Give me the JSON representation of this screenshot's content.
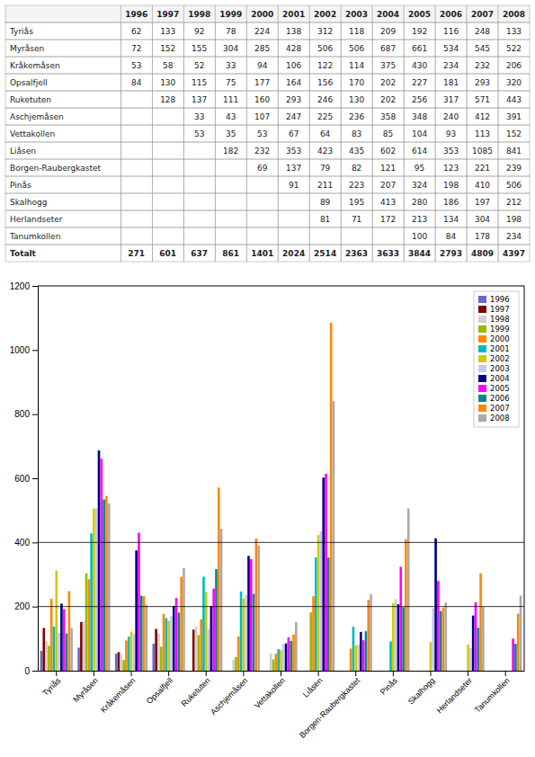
{
  "chart_data": [
    {
      "type": "table",
      "columns": [
        1996,
        1997,
        1998,
        1999,
        2000,
        2001,
        2002,
        2003,
        2004,
        2005,
        2006,
        2007,
        2008
      ],
      "rows": [
        "Tyriås",
        "Myråsen",
        "Kråkemåsen",
        "Opsalfjell",
        "Ruketuten",
        "Aschjemåsen",
        "Vettakollen",
        "Liåsen",
        "Borgen-Raubergkastet",
        "Pinås",
        "Skalhogg",
        "Herlandseter",
        "Tanumkollen"
      ],
      "cells": [
        [
          62,
          133,
          92,
          78,
          224,
          138,
          312,
          118,
          209,
          192,
          116,
          248,
          133
        ],
        [
          72,
          152,
          155,
          304,
          285,
          428,
          506,
          506,
          687,
          661,
          534,
          545,
          522
        ],
        [
          53,
          58,
          52,
          33,
          94,
          106,
          122,
          114,
          375,
          430,
          234,
          232,
          206
        ],
        [
          84,
          130,
          115,
          75,
          177,
          164,
          156,
          170,
          202,
          227,
          181,
          293,
          320
        ],
        [
          null,
          128,
          137,
          111,
          160,
          293,
          246,
          130,
          202,
          256,
          317,
          571,
          443
        ],
        [
          null,
          null,
          33,
          43,
          107,
          247,
          225,
          236,
          358,
          348,
          240,
          412,
          391
        ],
        [
          null,
          null,
          53,
          35,
          53,
          67,
          64,
          83,
          85,
          104,
          93,
          113,
          152
        ],
        [
          null,
          null,
          null,
          182,
          232,
          353,
          423,
          435,
          602,
          614,
          353,
          1085,
          841
        ],
        [
          null,
          null,
          null,
          null,
          69,
          137,
          79,
          82,
          121,
          95,
          123,
          221,
          239
        ],
        [
          null,
          null,
          null,
          null,
          null,
          91,
          211,
          223,
          207,
          324,
          198,
          410,
          506
        ],
        [
          null,
          null,
          null,
          null,
          null,
          null,
          89,
          195,
          413,
          280,
          186,
          197,
          212
        ],
        [
          null,
          null,
          null,
          null,
          null,
          null,
          81,
          71,
          172,
          213,
          134,
          304,
          198
        ],
        [
          null,
          null,
          null,
          null,
          null,
          null,
          null,
          null,
          null,
          100,
          84,
          178,
          234
        ]
      ],
      "total_label": "Totalt",
      "totals": [
        271,
        601,
        637,
        861,
        1401,
        2024,
        2514,
        2363,
        3633,
        3844,
        2793,
        4809,
        4397
      ]
    },
    {
      "type": "bar",
      "categories": [
        "Tyriås",
        "Myråsen",
        "Kråkemåsen",
        "Opsalfjell",
        "Ruketuten",
        "Aschjemåsen",
        "Vettakollen",
        "Liåsen",
        "Borgen-Raubergkastet",
        "Pinås",
        "Skalhogg",
        "Herlandseter",
        "Tanumkollen"
      ],
      "series": [
        {
          "name": "1996",
          "color": "#6666cc",
          "values": [
            62,
            72,
            53,
            84,
            0,
            0,
            0,
            0,
            0,
            0,
            0,
            0,
            0
          ]
        },
        {
          "name": "1997",
          "color": "#800000",
          "values": [
            133,
            152,
            58,
            130,
            128,
            0,
            0,
            0,
            0,
            0,
            0,
            0,
            0
          ]
        },
        {
          "name": "1998",
          "color": "#d0d0d0",
          "values": [
            92,
            155,
            52,
            115,
            137,
            33,
            53,
            0,
            0,
            0,
            0,
            0,
            0
          ]
        },
        {
          "name": "1999",
          "color": "#99bb00",
          "values": [
            78,
            304,
            33,
            75,
            111,
            43,
            35,
            182,
            0,
            0,
            0,
            0,
            0
          ]
        },
        {
          "name": "2000",
          "color": "#ff8800",
          "values": [
            224,
            285,
            94,
            177,
            160,
            107,
            53,
            232,
            69,
            0,
            0,
            0,
            0
          ]
        },
        {
          "name": "2001",
          "color": "#00bbbb",
          "values": [
            138,
            428,
            106,
            164,
            293,
            247,
            67,
            353,
            137,
            91,
            0,
            0,
            0
          ]
        },
        {
          "name": "2002",
          "color": "#cccc00",
          "values": [
            312,
            506,
            122,
            156,
            246,
            225,
            64,
            423,
            79,
            211,
            89,
            81,
            0
          ]
        },
        {
          "name": "2003",
          "color": "#c8c8e8",
          "values": [
            118,
            506,
            114,
            170,
            130,
            236,
            83,
            435,
            82,
            223,
            195,
            71,
            0
          ]
        },
        {
          "name": "2004",
          "color": "#000088",
          "values": [
            209,
            687,
            375,
            202,
            202,
            358,
            85,
            602,
            121,
            207,
            413,
            172,
            0
          ]
        },
        {
          "name": "2005",
          "color": "#ff00ff",
          "values": [
            192,
            661,
            430,
            227,
            256,
            348,
            104,
            614,
            95,
            324,
            280,
            213,
            100
          ]
        },
        {
          "name": "2006",
          "color": "#008888",
          "values": [
            116,
            534,
            234,
            181,
            317,
            240,
            93,
            353,
            123,
            198,
            186,
            134,
            84
          ]
        },
        {
          "name": "2007",
          "color": "#ff8800",
          "values": [
            248,
            545,
            232,
            293,
            571,
            412,
            113,
            1085,
            221,
            410,
            197,
            304,
            178
          ]
        },
        {
          "name": "2008",
          "color": "#aaaaaa",
          "values": [
            133,
            522,
            206,
            320,
            443,
            391,
            152,
            841,
            239,
            506,
            212,
            198,
            234
          ]
        }
      ],
      "ylim": [
        0,
        1200
      ],
      "yticks": [
        0,
        200,
        400,
        600,
        800,
        1000,
        1200
      ],
      "hlines": [
        200,
        400
      ],
      "grid": false,
      "legend": "upper right"
    }
  ]
}
